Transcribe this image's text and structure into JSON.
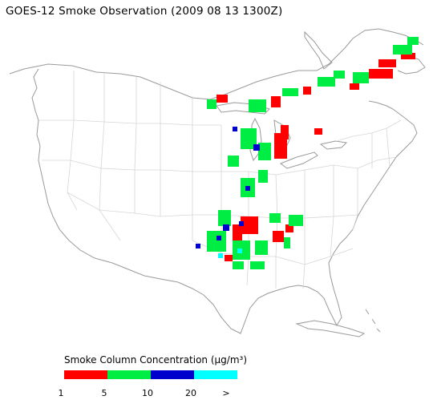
{
  "title": "GOES-12 Smoke Observation (2009 08 13  1300Z)",
  "legend": {
    "title": "Smoke Column Concentration (µg/m³)",
    "bins": [
      {
        "color": "#ff0000",
        "tick": "1"
      },
      {
        "color": "#00ee44",
        "tick": "5"
      },
      {
        "color": "#0000cc",
        "tick": "10"
      },
      {
        "color": "#00ffff",
        "tick": "20"
      }
    ],
    "end_tick": ">"
  },
  "map": {
    "coast_color": "#9a9a9a",
    "border_color": "#d6d6d6",
    "smoke_regions": [
      "Canada (Ontario/Quebec)",
      "Lake Michigan area",
      "Great Lakes",
      "Southern Plains / Arkansas / Louisiana"
    ]
  }
}
